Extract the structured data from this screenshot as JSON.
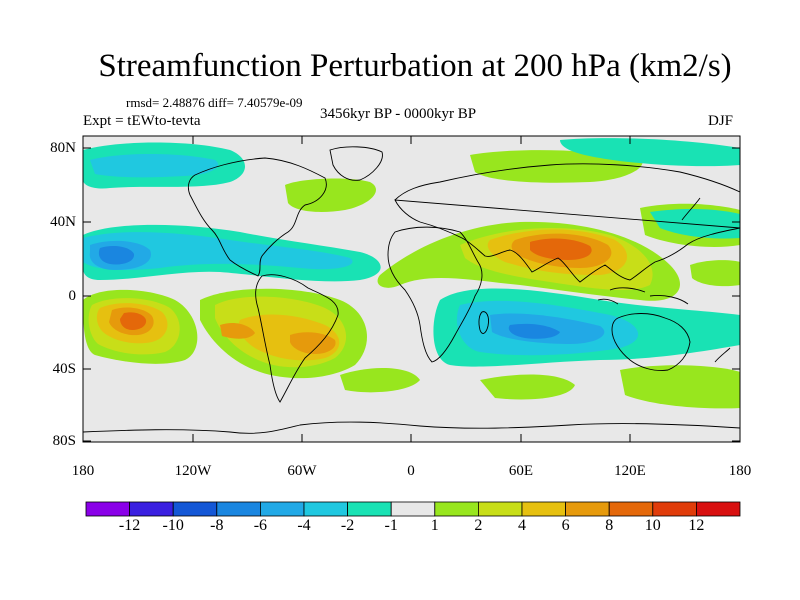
{
  "title": "Streamfunction Perturbation at 200 hPa (km2/s)",
  "stats": "rmsd= 2.48876 diff= 7.40579e-09",
  "experiment": "Expt = tEWto-tevta",
  "period": "3456kyr BP - 0000kyr BP",
  "season": "DJF",
  "axes": {
    "y_labels": [
      "80N",
      "40N",
      "0",
      "40S",
      "80S"
    ],
    "x_labels": [
      "180",
      "120W",
      "60W",
      "0",
      "60E",
      "120E",
      "180"
    ]
  },
  "colorbar": {
    "labels": [
      "-12",
      "-10",
      "-8",
      "-6",
      "-4",
      "-2",
      "-1",
      "1",
      "2",
      "4",
      "6",
      "8",
      "10",
      "12"
    ],
    "colors": [
      "#8a00e8",
      "#3a1fe0",
      "#1457d6",
      "#1a86e0",
      "#22a9e6",
      "#20c8e0",
      "#19e2b4",
      "#e8e8e8",
      "#98e61e",
      "#c8de18",
      "#e6c010",
      "#e69a0c",
      "#e4680a",
      "#e03c0a",
      "#d81010"
    ]
  }
}
